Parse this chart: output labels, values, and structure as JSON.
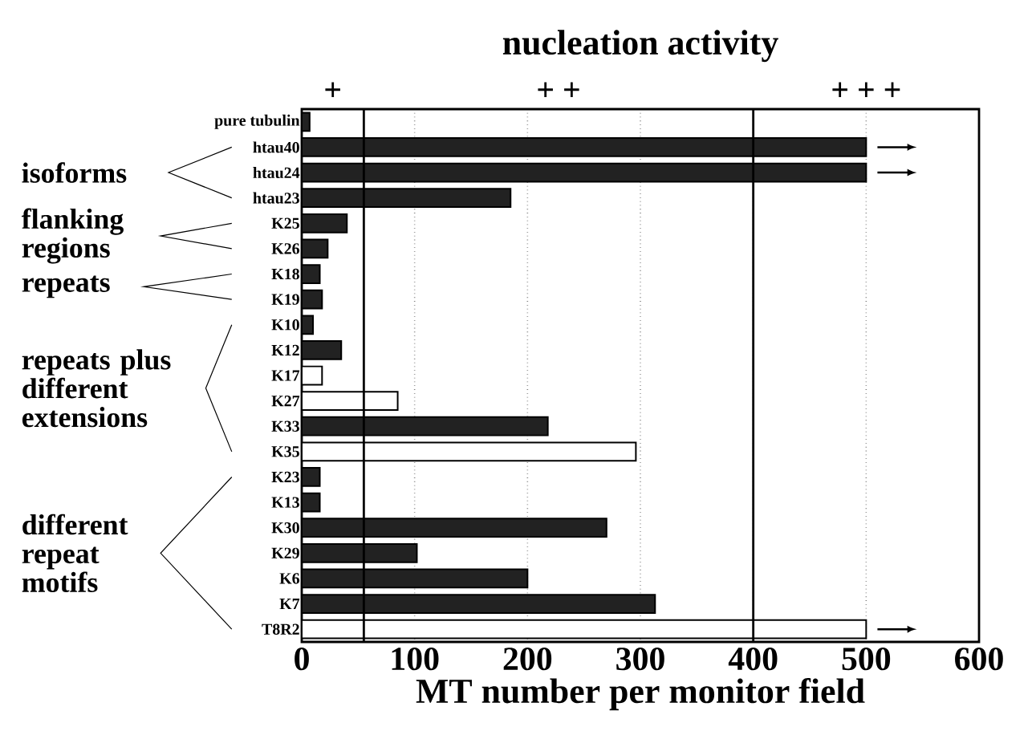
{
  "chart_data": {
    "type": "bar",
    "orientation": "horizontal",
    "title": "nucleation activity",
    "xlabel": "MT number per monitor field",
    "categories": [
      "pure tubulin",
      "htau40",
      "htau24",
      "htau23",
      "K25",
      "K26",
      "K18",
      "K19",
      "K10",
      "K12",
      "K17",
      "K27",
      "K33",
      "K35",
      "K23",
      "K13",
      "K30",
      "K29",
      "K6",
      "K7",
      "T8R2"
    ],
    "values": [
      7,
      500,
      500,
      185,
      40,
      23,
      16,
      18,
      10,
      35,
      18,
      85,
      218,
      296,
      16,
      16,
      270,
      102,
      200,
      313,
      500
    ],
    "colors": [
      "#222222",
      "#222222",
      "#222222",
      "#222222",
      "#222222",
      "#222222",
      "#222222",
      "#222222",
      "#222222",
      "#222222",
      "#ffffff",
      "#ffffff",
      "#222222",
      "#ffffff",
      "#222222",
      "#222222",
      "#222222",
      "#222222",
      "#222222",
      "#222222",
      "#ffffff"
    ],
    "xlim": [
      0,
      600
    ],
    "xticks": [
      0,
      100,
      200,
      300,
      400,
      500,
      600
    ],
    "grid": "x",
    "ref_lines": [
      {
        "axis": "x",
        "value": 55
      },
      {
        "axis": "x",
        "value": 400
      }
    ],
    "annotations": [
      "+",
      "+ +",
      "+ + +",
      "isoforms",
      "flanking regions",
      "repeats",
      "repeats plus different extensions",
      "different repeat motifs"
    ]
  }
}
